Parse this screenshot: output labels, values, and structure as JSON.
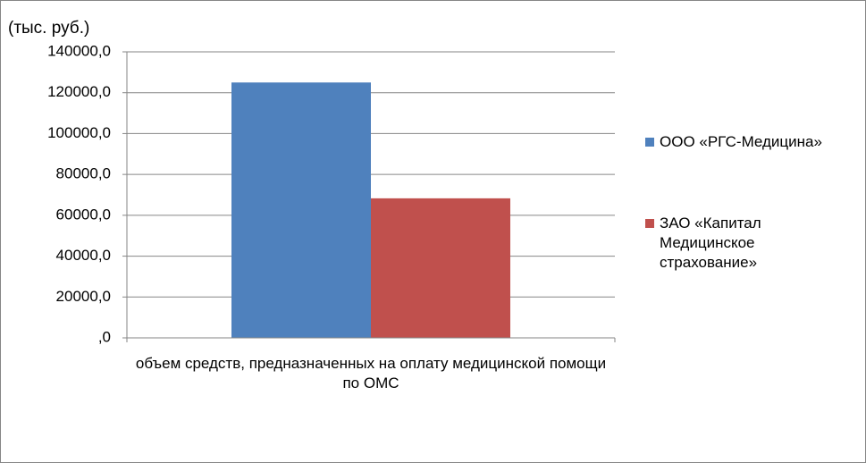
{
  "chart_data": {
    "type": "bar",
    "y_label": "(тыс. руб.)",
    "categories": [
      "объем средств, предназначенных на оплату медицинской помощи по ОМС"
    ],
    "series": [
      {
        "name": "ООО «РГС-Медицина»",
        "color": "#4f81bd",
        "values": [
          125000
        ]
      },
      {
        "name": "ЗАО «Капитал Медицинское страхование»",
        "color": "#c0504d",
        "values": [
          68300
        ]
      }
    ],
    "ylim": [
      0,
      140000
    ],
    "yticks": [
      {
        "value": 0,
        "label": ",0"
      },
      {
        "value": 20000,
        "label": "20000,0"
      },
      {
        "value": 40000,
        "label": "40000,0"
      },
      {
        "value": 60000,
        "label": "60000,0"
      },
      {
        "value": 80000,
        "label": "80000,0"
      },
      {
        "value": 100000,
        "label": "100000,0"
      },
      {
        "value": 120000,
        "label": "120000,0"
      },
      {
        "value": 140000,
        "label": "140000,0"
      }
    ],
    "grid": true,
    "legend": "right"
  }
}
